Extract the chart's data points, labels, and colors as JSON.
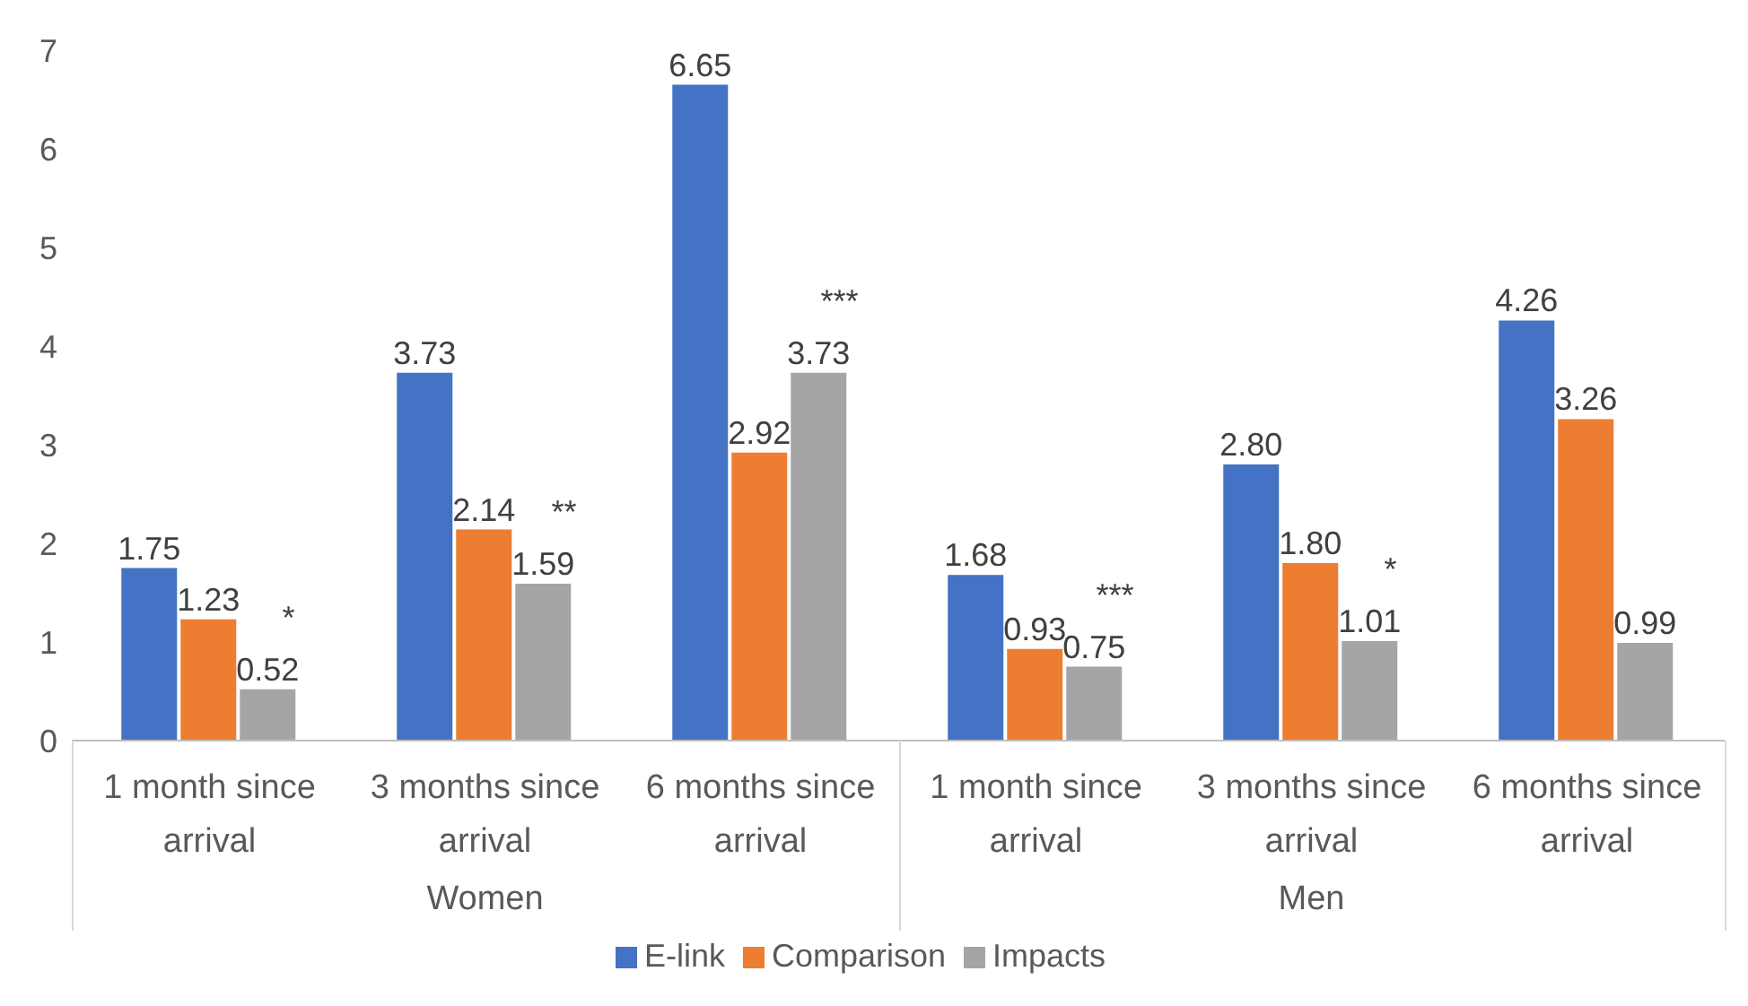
{
  "chart_data": {
    "type": "bar",
    "categories": [
      "1 month since arrival",
      "3 months since arrival",
      "6 months since arrival",
      "1 month since arrival",
      "3 months since arrival",
      "6 months since arrival"
    ],
    "series": [
      {
        "name": "E-link",
        "color": "#4472c4",
        "values": [
          1.75,
          3.73,
          6.65,
          1.68,
          2.8,
          4.26
        ],
        "value_labels": [
          "1.75",
          "3.73",
          "6.65",
          "1.68",
          "2.80",
          "4.26"
        ]
      },
      {
        "name": "Comparison",
        "color": "#ed7d31",
        "values": [
          1.23,
          2.14,
          2.92,
          0.93,
          1.8,
          3.26
        ],
        "value_labels": [
          "1.23",
          "2.14",
          "2.92",
          "0.93",
          "1.80",
          "3.26"
        ]
      },
      {
        "name": "Impacts",
        "color": "#a5a5a5",
        "values": [
          0.52,
          1.59,
          3.73,
          0.75,
          1.01,
          0.99
        ],
        "value_labels": [
          "0.52",
          "1.59",
          "3.73",
          "0.75",
          "1.01",
          "0.99"
        ]
      }
    ],
    "annotations": [
      "*",
      "**",
      "***",
      "***",
      "*",
      "Women",
      "Men"
    ],
    "ylim": [
      0,
      7
    ],
    "yticks": [
      0,
      1,
      2,
      3,
      4,
      5,
      6,
      7
    ],
    "grid": false,
    "legend": "bottom"
  }
}
